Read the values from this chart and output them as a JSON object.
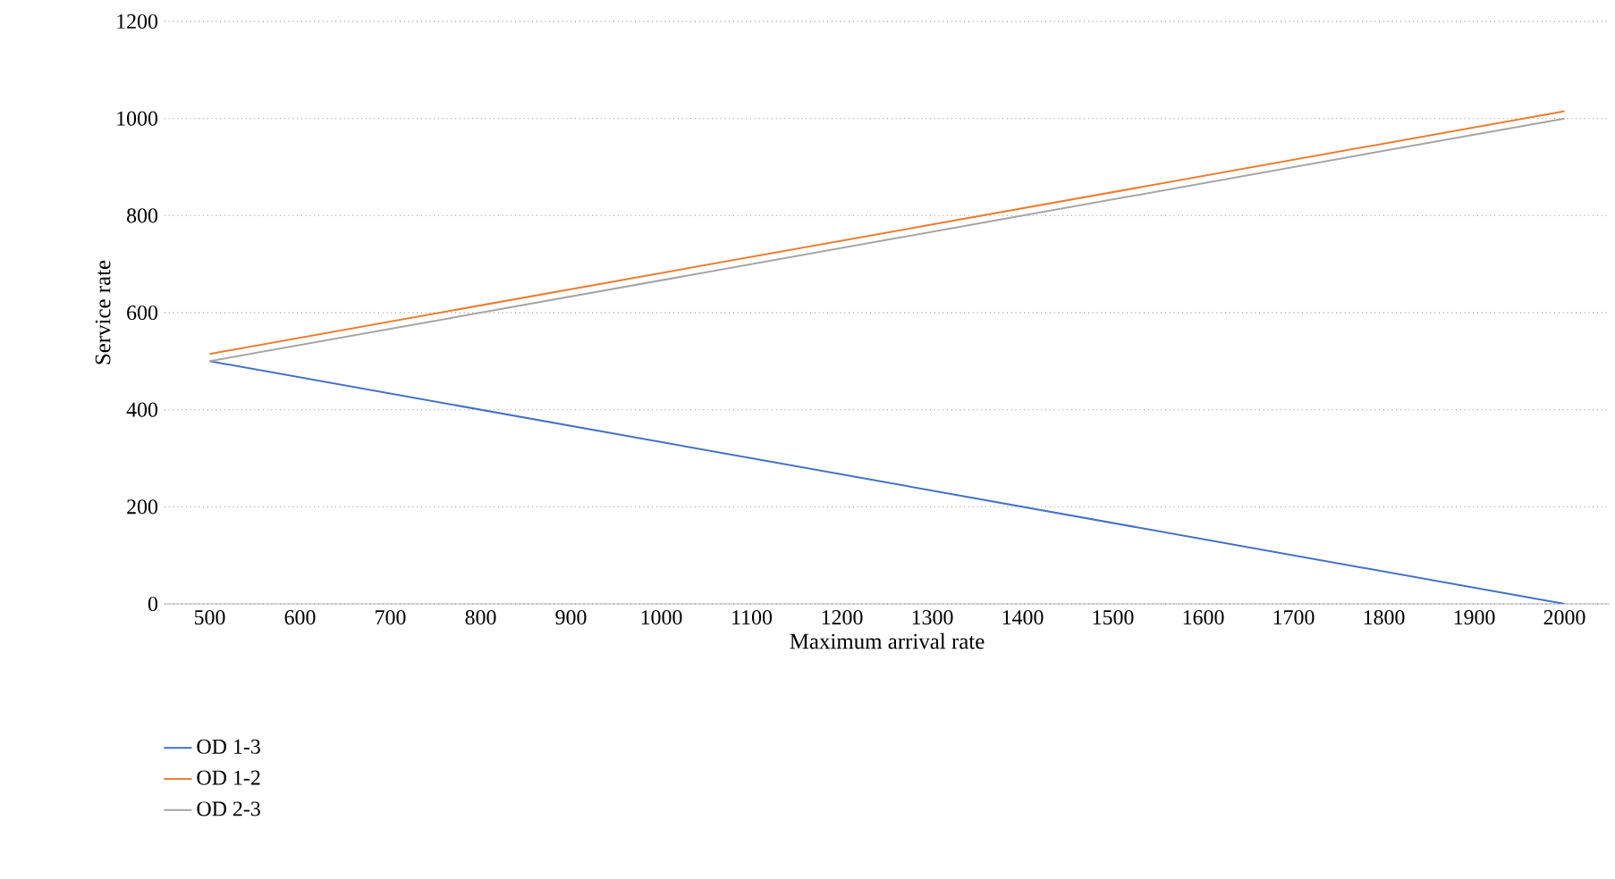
{
  "chart_data": {
    "type": "line",
    "xlabel": "Maximum arrival rate",
    "ylabel": "Service rate",
    "x": [
      500,
      2000
    ],
    "series": [
      {
        "name": "OD 1-3",
        "color": "#4472c4",
        "values": [
          500,
          0
        ]
      },
      {
        "name": "OD 1-2",
        "color": "#ed7d31",
        "values": [
          515,
          1015
        ]
      },
      {
        "name": "OD 2-3",
        "color": "#a5a5a5",
        "values": [
          500,
          1000
        ]
      }
    ],
    "xlim": [
      450,
      2050
    ],
    "xticks": [
      500,
      600,
      700,
      800,
      900,
      1000,
      1100,
      1200,
      1300,
      1400,
      1500,
      1600,
      1700,
      1800,
      1900,
      2000
    ],
    "ylim": [
      0,
      1200
    ],
    "yticks": [
      0,
      200,
      400,
      600,
      800,
      1000,
      1200
    ],
    "grid": "y",
    "legend": "bottom left"
  }
}
